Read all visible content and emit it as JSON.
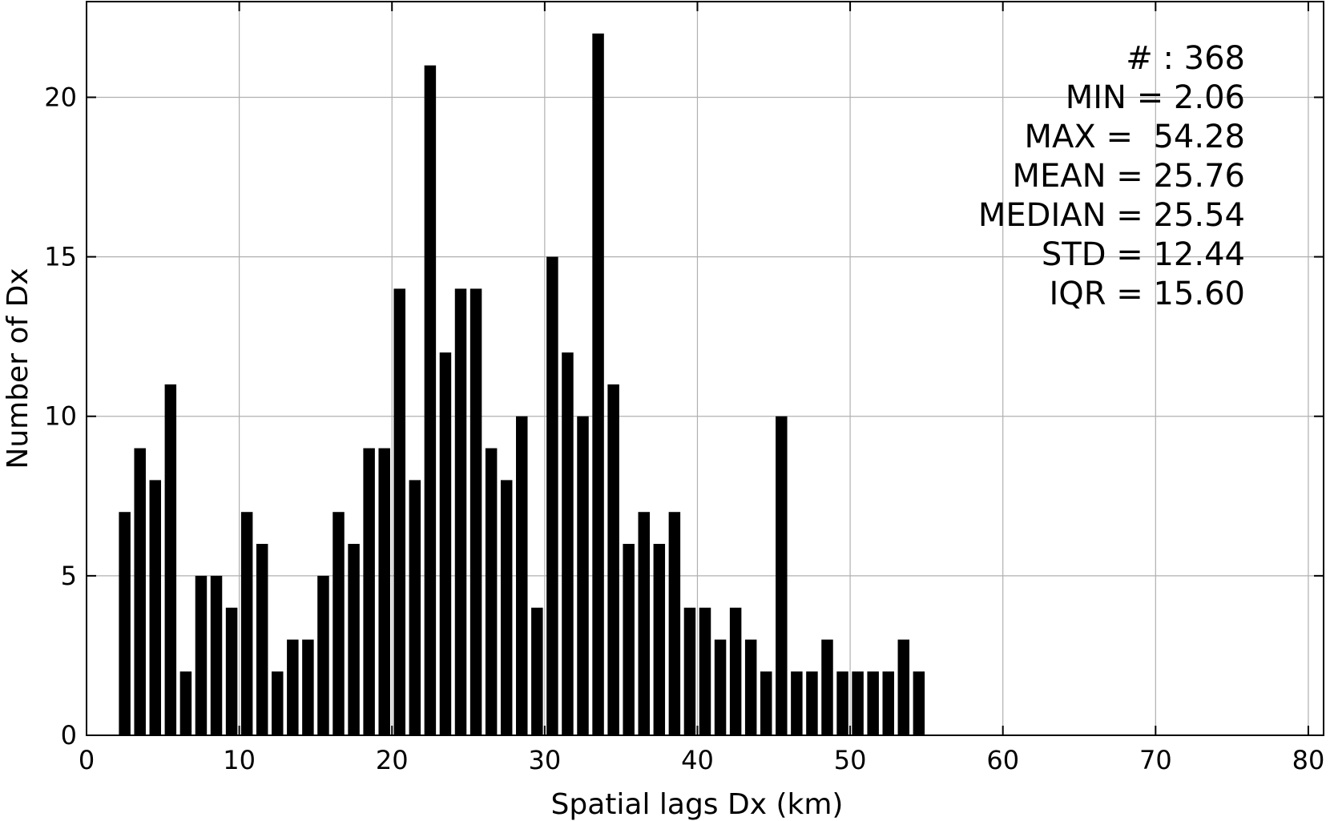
{
  "chart_data": {
    "type": "bar",
    "title": "",
    "xlabel": "Spatial lags Dx (km)",
    "ylabel": "Number of Dx",
    "xlim": [
      0,
      81
    ],
    "ylim": [
      0,
      23
    ],
    "xticks": [
      0,
      10,
      20,
      30,
      40,
      50,
      60,
      70,
      80
    ],
    "xtick_labels": [
      "0",
      "10",
      "20",
      "30",
      "40",
      "50",
      "60",
      "70",
      "80"
    ],
    "yticks": [
      0,
      5,
      10,
      15,
      20
    ],
    "ytick_labels": [
      "0",
      "5",
      "10",
      "15",
      "20"
    ],
    "grid": true,
    "bar_color": "#000000",
    "grid_color": "#b0b0b0",
    "bins": [
      2.5,
      3.5,
      4.5,
      5.5,
      6.5,
      7.5,
      8.5,
      9.5,
      10.5,
      11.5,
      12.5,
      13.5,
      14.5,
      15.5,
      16.5,
      17.5,
      18.5,
      19.5,
      20.5,
      21.5,
      22.5,
      23.5,
      24.5,
      25.5,
      26.5,
      27.5,
      28.5,
      29.5,
      30.5,
      31.5,
      32.5,
      33.5,
      34.5,
      35.5,
      36.5,
      37.5,
      38.5,
      39.5,
      40.5,
      41.5,
      42.5,
      43.5,
      44.5,
      45.5,
      46.5,
      47.5,
      48.5,
      49.5,
      50.5,
      51.5,
      52.5,
      53.5,
      54.5
    ],
    "values": [
      7,
      9,
      8,
      11,
      2,
      5,
      5,
      4,
      7,
      6,
      2,
      3,
      3,
      5,
      7,
      6,
      9,
      9,
      14,
      8,
      21,
      12,
      14,
      14,
      9,
      8,
      10,
      4,
      15,
      12,
      10,
      22,
      11,
      6,
      7,
      6,
      7,
      4,
      4,
      3,
      4,
      3,
      2,
      10,
      2,
      2,
      3,
      2,
      2,
      2,
      2,
      3,
      2
    ],
    "annotation": {
      "placement": "top-right",
      "lines": [
        "# : 368",
        "MIN = 2.06",
        "MAX =  54.28",
        "MEAN = 25.76",
        "MEDIAN = 25.54",
        "STD = 12.44",
        "IQR = 15.60"
      ]
    }
  }
}
